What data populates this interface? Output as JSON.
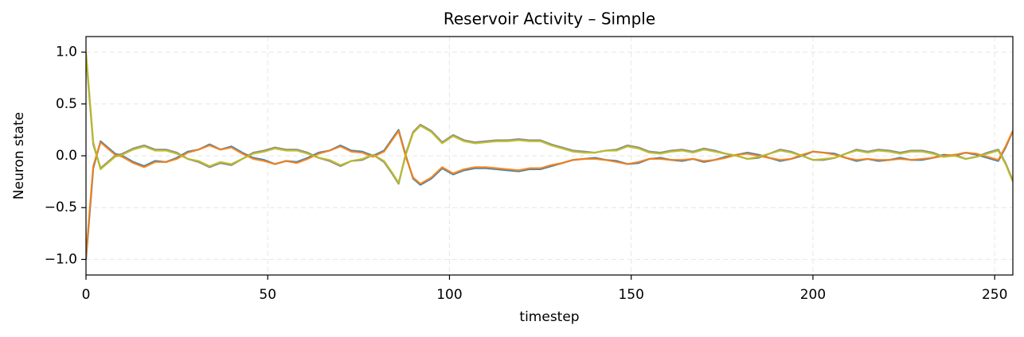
{
  "chart_data": {
    "type": "line",
    "title": "Reservoir Activity – Simple",
    "xlabel": "timestep",
    "ylabel": "Neuron state",
    "x": [
      0,
      2,
      4,
      6,
      8,
      10,
      13,
      16,
      19,
      22,
      25,
      28,
      31,
      34,
      37,
      40,
      43,
      46,
      49,
      52,
      55,
      58,
      61,
      64,
      67,
      70,
      73,
      76,
      79,
      82,
      84,
      86,
      88,
      90,
      92,
      95,
      98,
      101,
      104,
      107,
      110,
      113,
      116,
      119,
      122,
      125,
      128,
      131,
      134,
      137,
      140,
      143,
      146,
      149,
      152,
      155,
      158,
      161,
      164,
      167,
      170,
      173,
      176,
      179,
      182,
      185,
      188,
      191,
      194,
      197,
      200,
      203,
      206,
      209,
      212,
      215,
      218,
      221,
      224,
      227,
      230,
      233,
      236,
      239,
      242,
      245,
      248,
      251,
      253,
      255
    ],
    "series": [
      {
        "color": "#1f77b4",
        "values": [
          -1.0,
          -0.12,
          0.14,
          0.08,
          0.02,
          0.0,
          -0.06,
          -0.1,
          -0.05,
          -0.06,
          -0.02,
          0.04,
          0.06,
          0.11,
          0.06,
          0.09,
          0.03,
          -0.02,
          -0.04,
          -0.08,
          -0.05,
          -0.06,
          -0.02,
          0.03,
          0.05,
          0.1,
          0.05,
          0.04,
          0.0,
          0.05,
          0.15,
          0.25,
          0.0,
          -0.22,
          -0.28,
          -0.22,
          -0.12,
          -0.18,
          -0.14,
          -0.12,
          -0.12,
          -0.13,
          -0.14,
          -0.15,
          -0.13,
          -0.13,
          -0.1,
          -0.07,
          -0.04,
          -0.03,
          -0.02,
          -0.04,
          -0.05,
          -0.08,
          -0.07,
          -0.03,
          -0.02,
          -0.04,
          -0.05,
          -0.03,
          -0.06,
          -0.04,
          -0.01,
          0.01,
          0.03,
          0.01,
          -0.02,
          -0.05,
          -0.03,
          0.0,
          0.04,
          0.03,
          0.02,
          -0.02,
          -0.05,
          -0.03,
          -0.05,
          -0.04,
          -0.02,
          -0.04,
          -0.04,
          -0.02,
          0.01,
          0.0,
          0.03,
          0.01,
          -0.02,
          -0.05,
          0.08,
          0.24
        ]
      },
      {
        "color": "#7f7f7f",
        "values": [
          0.97,
          0.11,
          -0.12,
          -0.06,
          0.0,
          0.02,
          0.07,
          0.1,
          0.06,
          0.06,
          0.03,
          -0.03,
          -0.06,
          -0.11,
          -0.07,
          -0.09,
          -0.03,
          0.03,
          0.05,
          0.08,
          0.06,
          0.06,
          0.03,
          -0.02,
          -0.05,
          -0.1,
          -0.05,
          -0.04,
          0.01,
          -0.06,
          -0.16,
          -0.27,
          0.02,
          0.23,
          0.3,
          0.24,
          0.13,
          0.2,
          0.15,
          0.13,
          0.14,
          0.15,
          0.15,
          0.16,
          0.15,
          0.15,
          0.11,
          0.08,
          0.05,
          0.04,
          0.03,
          0.05,
          0.06,
          0.1,
          0.08,
          0.04,
          0.03,
          0.05,
          0.06,
          0.04,
          0.07,
          0.05,
          0.02,
          0.0,
          -0.03,
          -0.02,
          0.02,
          0.06,
          0.04,
          0.0,
          -0.04,
          -0.04,
          -0.02,
          0.02,
          0.06,
          0.04,
          0.06,
          0.05,
          0.03,
          0.05,
          0.05,
          0.03,
          -0.01,
          0.01,
          -0.03,
          -0.01,
          0.03,
          0.06,
          -0.07,
          -0.24
        ]
      },
      {
        "color": "#ff7f0e",
        "values": [
          -0.97,
          -0.1,
          0.13,
          0.07,
          0.01,
          -0.01,
          -0.07,
          -0.11,
          -0.06,
          -0.06,
          -0.03,
          0.03,
          0.06,
          0.1,
          0.06,
          0.08,
          0.02,
          -0.03,
          -0.05,
          -0.08,
          -0.05,
          -0.07,
          -0.03,
          0.02,
          0.05,
          0.09,
          0.04,
          0.03,
          -0.01,
          0.04,
          0.14,
          0.24,
          -0.01,
          -0.21,
          -0.27,
          -0.21,
          -0.11,
          -0.17,
          -0.13,
          -0.11,
          -0.11,
          -0.12,
          -0.13,
          -0.14,
          -0.12,
          -0.12,
          -0.09,
          -0.07,
          -0.04,
          -0.03,
          -0.03,
          -0.04,
          -0.06,
          -0.08,
          -0.06,
          -0.03,
          -0.03,
          -0.04,
          -0.04,
          -0.03,
          -0.05,
          -0.04,
          -0.02,
          0.01,
          0.02,
          0.0,
          -0.02,
          -0.04,
          -0.03,
          0.01,
          0.04,
          0.03,
          0.01,
          -0.02,
          -0.04,
          -0.03,
          -0.04,
          -0.04,
          -0.03,
          -0.04,
          -0.03,
          -0.02,
          0.0,
          0.01,
          0.03,
          0.02,
          -0.01,
          -0.04,
          0.09,
          0.24
        ]
      },
      {
        "color": "#bcbd22",
        "values": [
          1.0,
          0.13,
          -0.13,
          -0.07,
          -0.01,
          0.01,
          0.06,
          0.09,
          0.05,
          0.05,
          0.02,
          -0.03,
          -0.05,
          -0.1,
          -0.06,
          -0.08,
          -0.03,
          0.02,
          0.04,
          0.07,
          0.05,
          0.05,
          0.02,
          -0.02,
          -0.04,
          -0.09,
          -0.05,
          -0.03,
          0.01,
          -0.05,
          -0.15,
          -0.26,
          0.01,
          0.22,
          0.29,
          0.23,
          0.12,
          0.19,
          0.14,
          0.12,
          0.13,
          0.14,
          0.14,
          0.15,
          0.14,
          0.14,
          0.1,
          0.07,
          0.04,
          0.03,
          0.03,
          0.05,
          0.05,
          0.09,
          0.07,
          0.03,
          0.02,
          0.04,
          0.05,
          0.03,
          0.06,
          0.04,
          0.02,
          0.0,
          -0.03,
          -0.01,
          0.02,
          0.05,
          0.03,
          0.0,
          -0.04,
          -0.03,
          -0.02,
          0.02,
          0.05,
          0.03,
          0.05,
          0.04,
          0.02,
          0.04,
          0.04,
          0.02,
          -0.01,
          0.0,
          -0.03,
          -0.01,
          0.02,
          0.05,
          -0.08,
          -0.25
        ]
      }
    ],
    "xlim": [
      0,
      255
    ],
    "ylim": [
      -1.15,
      1.15
    ],
    "xticks": [
      0,
      50,
      100,
      150,
      200,
      250
    ],
    "yticks": [
      {
        "value": -1.0,
        "label": "−1.0"
      },
      {
        "value": -0.5,
        "label": "−0.5"
      },
      {
        "value": 0.0,
        "label": "0.0"
      },
      {
        "value": 0.5,
        "label": "0.5"
      },
      {
        "value": 1.0,
        "label": "1.0"
      }
    ],
    "grid": true
  }
}
